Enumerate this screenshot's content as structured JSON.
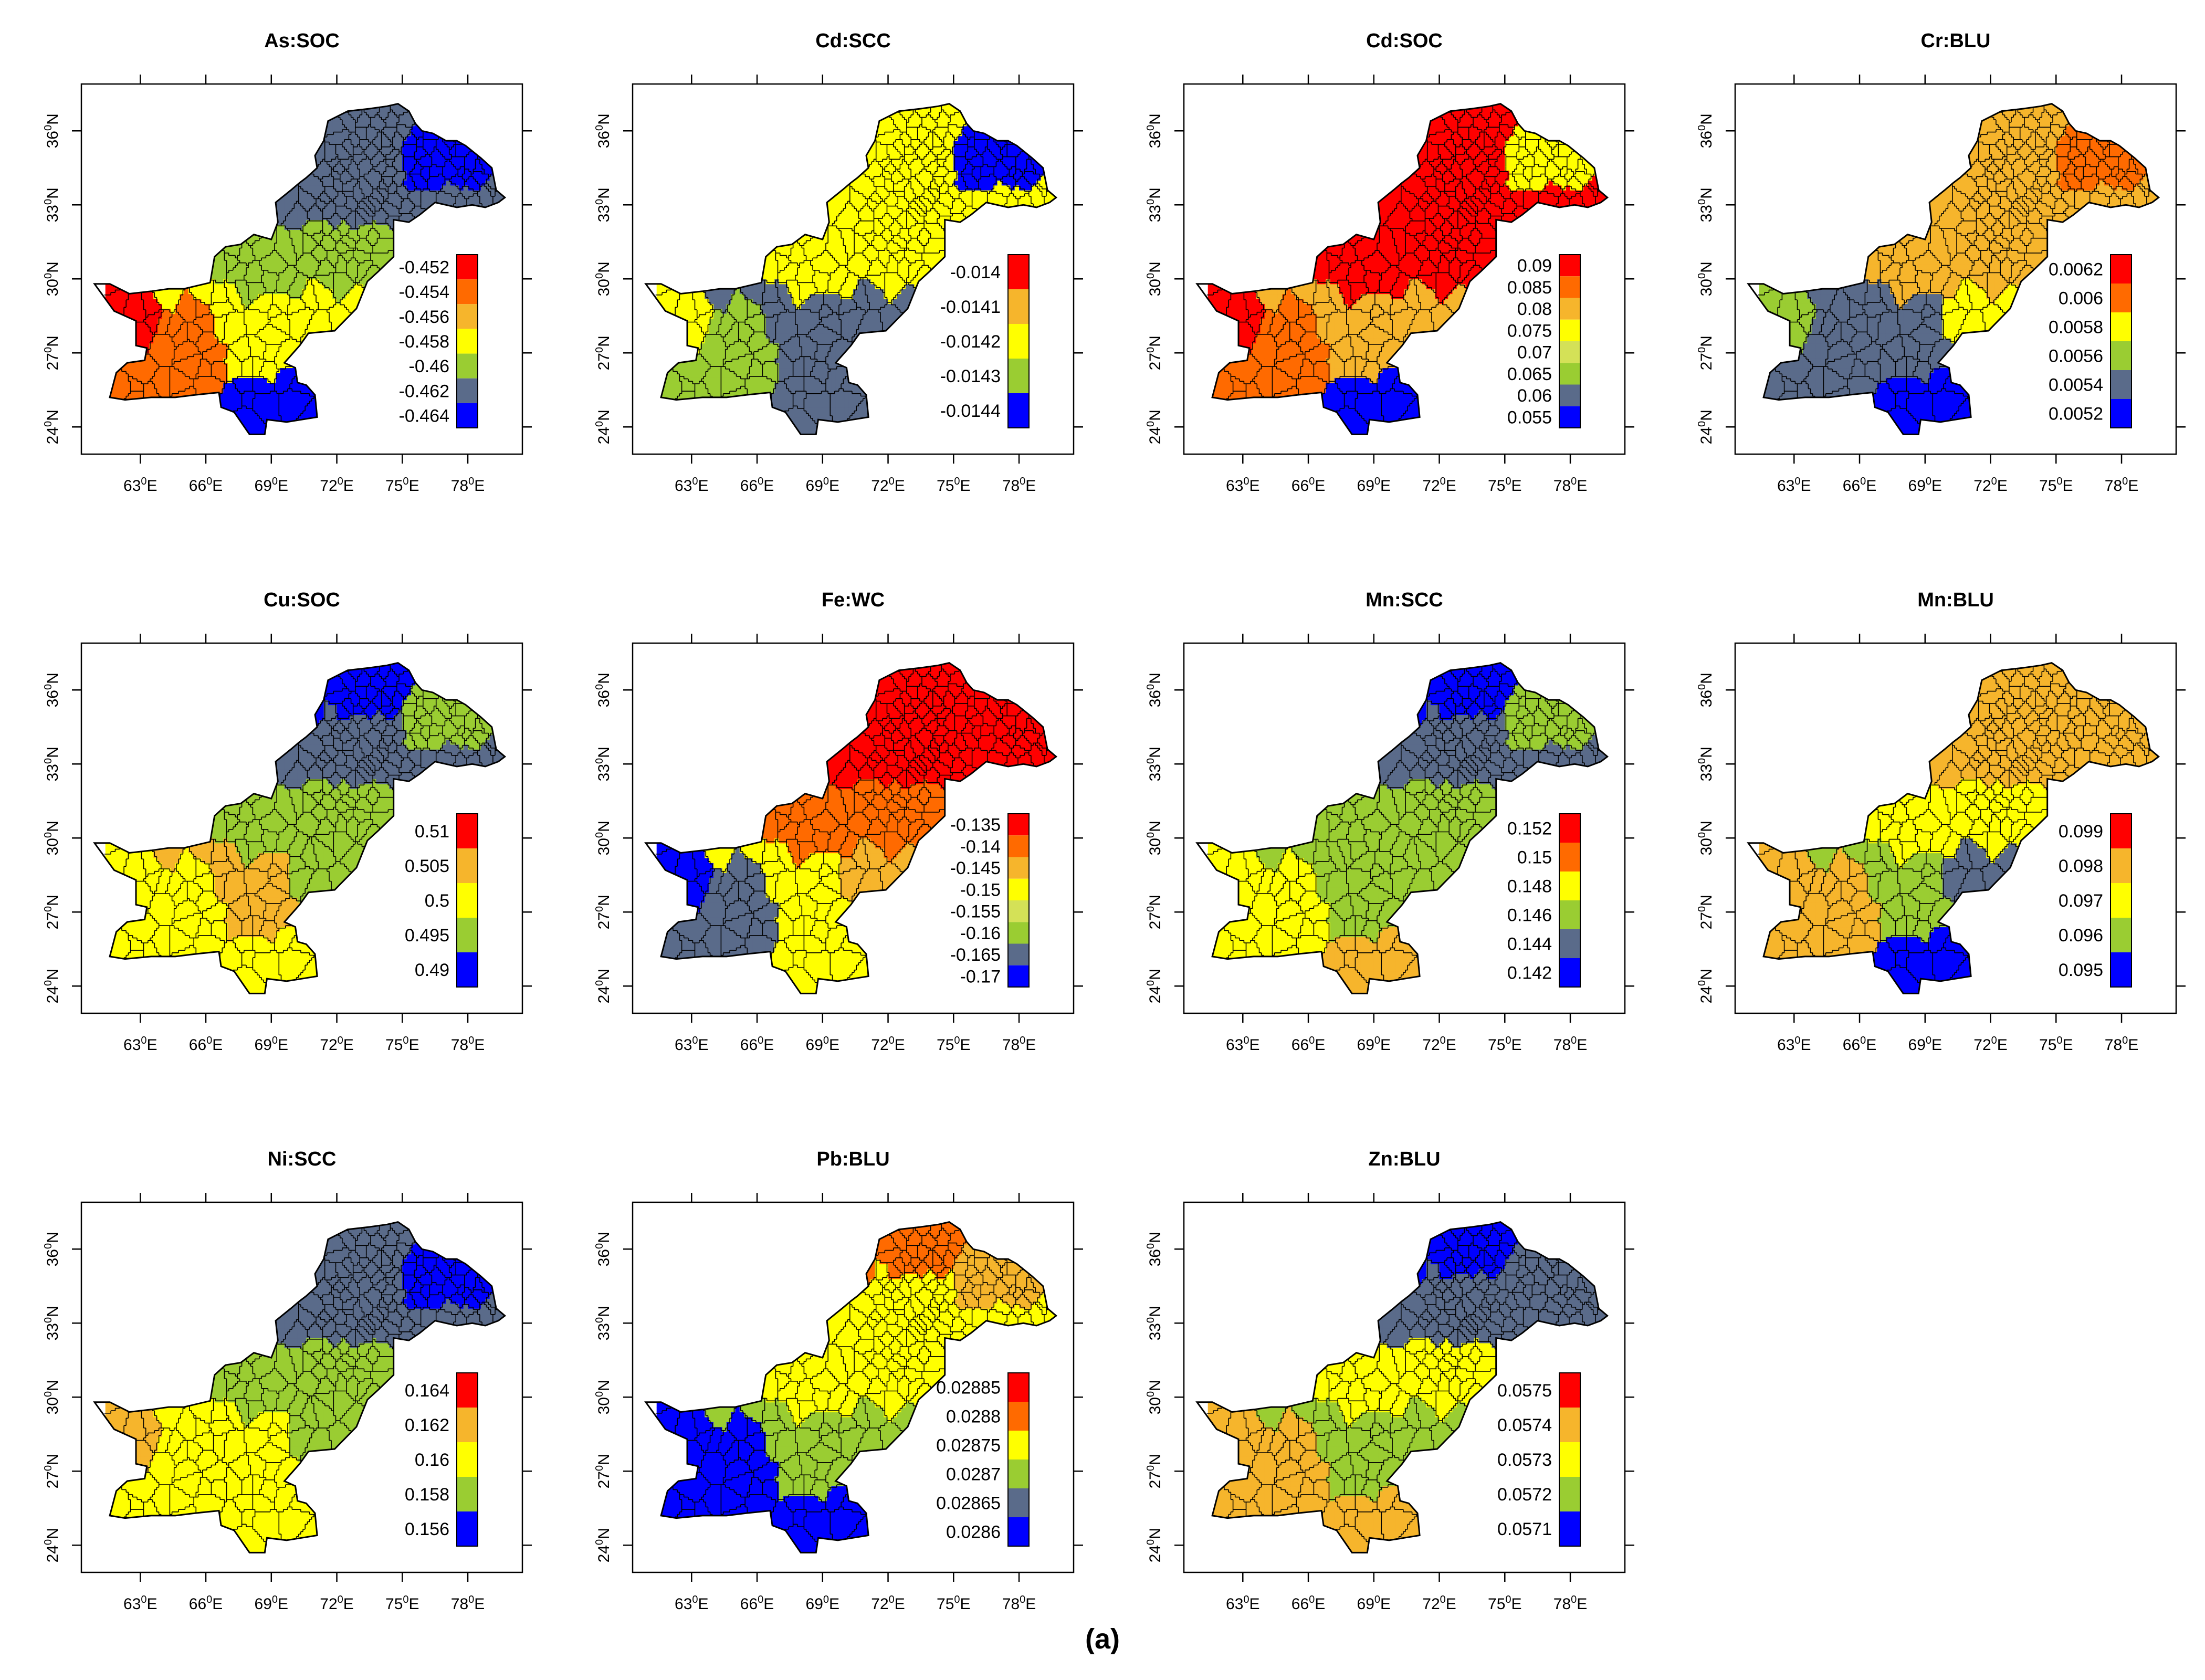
{
  "figure_label": "(a)",
  "x_ticks": [
    "63",
    "66",
    "69",
    "72",
    "75",
    "78"
  ],
  "x_suffix": "E",
  "y_ticks": [
    "24",
    "27",
    "30",
    "33",
    "36"
  ],
  "y_suffix": "N",
  "degree_symbol": "0",
  "palette": [
    "#ff0000",
    "#ff6a00",
    "#f6b52c",
    "#ffff00",
    "#9acd32",
    "#5a6b8a",
    "#0000ff"
  ],
  "chart_data": [
    {
      "title": "As:SOC",
      "legend": [
        "-0.452",
        "-0.454",
        "-0.456",
        "-0.458",
        "-0.46",
        "-0.462",
        "-0.464"
      ],
      "region_levels": [
        [
          0,
          "far-west"
        ],
        [
          1,
          "west-south"
        ],
        [
          3,
          "south-central"
        ],
        [
          4,
          "north-central"
        ],
        [
          5,
          "northeast"
        ],
        [
          6,
          "kashmir"
        ],
        [
          6,
          "lower-sindh"
        ]
      ]
    },
    {
      "title": "Cd:SCC",
      "legend": [
        "-0.014",
        "-0.0141",
        "-0.0142",
        "-0.0143",
        "-0.0144"
      ],
      "region_levels": [
        [
          3,
          "far-west"
        ],
        [
          4,
          "west-south"
        ],
        [
          5,
          "south-central"
        ],
        [
          3,
          "north"
        ],
        [
          6,
          "kashmir"
        ]
      ]
    },
    {
      "title": "Cd:SOC",
      "legend": [
        "0.09",
        "0.085",
        "0.08",
        "0.075",
        "0.07",
        "0.065",
        "0.06",
        "0.055"
      ],
      "region_levels": [
        [
          0,
          "far-west"
        ],
        [
          1,
          "west-south"
        ],
        [
          2,
          "south-central"
        ],
        [
          0,
          "north"
        ],
        [
          3,
          "kashmir"
        ],
        [
          7,
          "lower-sindh"
        ]
      ]
    },
    {
      "title": "Cr:BLU",
      "legend": [
        "0.0062",
        "0.006",
        "0.0058",
        "0.0056",
        "0.0054",
        "0.0052"
      ],
      "region_levels": [
        [
          4,
          "far-west"
        ],
        [
          2,
          "north-central"
        ],
        [
          1,
          "kashmir"
        ],
        [
          5,
          "south"
        ],
        [
          6,
          "lower-sindh"
        ]
      ]
    },
    {
      "title": "Cu:SOC",
      "legend": [
        "0.51",
        "0.505",
        "0.5",
        "0.495",
        "0.49"
      ],
      "region_levels": [
        [
          3,
          "south"
        ],
        [
          2,
          "south-central"
        ],
        [
          4,
          "central"
        ],
        [
          5,
          "northeast"
        ],
        [
          6,
          "north-tip"
        ],
        [
          4,
          "kashmir"
        ]
      ]
    },
    {
      "title": "Fe:WC",
      "legend": [
        "-0.135",
        "-0.14",
        "-0.145",
        "-0.15",
        "-0.155",
        "-0.16",
        "-0.165",
        "-0.17"
      ],
      "region_levels": [
        [
          6,
          "far-west"
        ],
        [
          5,
          "west"
        ],
        [
          3,
          "south-central"
        ],
        [
          2,
          "central"
        ],
        [
          1,
          "north-central"
        ],
        [
          0,
          "northeast"
        ]
      ]
    },
    {
      "title": "Mn:SCC",
      "legend": [
        "0.152",
        "0.15",
        "0.148",
        "0.146",
        "0.144",
        "0.142"
      ],
      "region_levels": [
        [
          3,
          "south"
        ],
        [
          4,
          "central"
        ],
        [
          5,
          "northeast"
        ],
        [
          6,
          "north-tip"
        ],
        [
          4,
          "kashmir"
        ],
        [
          2,
          "lower-sindh"
        ]
      ]
    },
    {
      "title": "Mn:BLU",
      "legend": [
        "0.099",
        "0.098",
        "0.097",
        "0.096",
        "0.095"
      ],
      "region_levels": [
        [
          2,
          "far-west"
        ],
        [
          3,
          "central"
        ],
        [
          4,
          "middle"
        ],
        [
          5,
          "east"
        ],
        [
          6,
          "lower-sindh"
        ],
        [
          2,
          "north"
        ]
      ]
    },
    {
      "title": "Ni:SCC",
      "legend": [
        "0.164",
        "0.162",
        "0.16",
        "0.158",
        "0.156"
      ],
      "region_levels": [
        [
          2,
          "far-west"
        ],
        [
          3,
          "south-central"
        ],
        [
          4,
          "central"
        ],
        [
          5,
          "northeast"
        ],
        [
          6,
          "kashmir"
        ]
      ]
    },
    {
      "title": "Pb:BLU",
      "legend": [
        "0.02885",
        "0.0288",
        "0.02875",
        "0.0287",
        "0.02865",
        "0.0286"
      ],
      "region_levels": [
        [
          6,
          "south"
        ],
        [
          5,
          "central"
        ],
        [
          4,
          "middle"
        ],
        [
          3,
          "north-central"
        ],
        [
          1,
          "north-tip"
        ],
        [
          2,
          "kashmir"
        ]
      ]
    },
    {
      "title": "Zn:BLU",
      "legend": [
        "0.0575",
        "0.0574",
        "0.0573",
        "0.0572",
        "0.0571"
      ],
      "region_levels": [
        [
          2,
          "south"
        ],
        [
          3,
          "central"
        ],
        [
          4,
          "middle"
        ],
        [
          5,
          "northeast"
        ],
        [
          6,
          "north-tip"
        ]
      ]
    }
  ]
}
